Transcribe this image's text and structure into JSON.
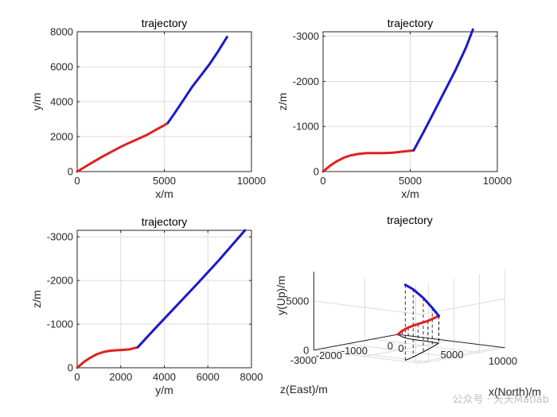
{
  "colors": {
    "phase1": "#e02020",
    "phase2": "#1a1acc",
    "axis": "#262626",
    "grid": "#dddddd"
  },
  "watermark": "公众号 · 天天Matlab",
  "chart_data": [
    {
      "type": "line",
      "title": "trajectory",
      "xlabel": "x/m",
      "ylabel": "y/m",
      "xlim": [
        0,
        10000
      ],
      "ylim": [
        0,
        8000
      ],
      "xticks": [
        0,
        5000,
        10000
      ],
      "yticks": [
        0,
        2000,
        4000,
        6000,
        8000
      ],
      "grid": true,
      "series": [
        {
          "color": "#e02020",
          "x": [
            0,
            500,
            1000,
            1500,
            2000,
            2500,
            3000,
            3500,
            4000,
            4500,
            5000,
            5200
          ],
          "y": [
            0,
            300,
            600,
            880,
            1150,
            1420,
            1650,
            1870,
            2100,
            2380,
            2650,
            2780
          ]
        },
        {
          "color": "#1a1acc",
          "x": [
            5200,
            5600,
            6100,
            6600,
            7100,
            7600,
            8100,
            8600
          ],
          "y": [
            2780,
            3350,
            4100,
            4850,
            5500,
            6150,
            6900,
            7700
          ]
        }
      ]
    },
    {
      "type": "line",
      "title": "trajectory",
      "xlabel": "x/m",
      "ylabel": "z/m",
      "xlim": [
        0,
        10000
      ],
      "ylim": [
        0,
        -3100
      ],
      "xticks": [
        0,
        5000,
        10000
      ],
      "yticks": [
        0,
        -1000,
        -2000,
        -3000
      ],
      "grid": true,
      "series": [
        {
          "color": "#e02020",
          "x": [
            0,
            400,
            800,
            1200,
            1600,
            2000,
            2500,
            3000,
            3500,
            4000,
            4500,
            5000,
            5200
          ],
          "y": [
            0,
            -130,
            -230,
            -310,
            -360,
            -390,
            -410,
            -410,
            -410,
            -420,
            -440,
            -460,
            -470
          ]
        },
        {
          "color": "#1a1acc",
          "x": [
            5200,
            5800,
            6400,
            7000,
            7600,
            8200,
            8600
          ],
          "y": [
            -470,
            -900,
            -1350,
            -1800,
            -2250,
            -2750,
            -3150
          ]
        }
      ]
    },
    {
      "type": "line",
      "title": "trajectory",
      "xlabel": "y/m",
      "ylabel": "z/m",
      "xlim": [
        0,
        8000
      ],
      "ylim": [
        0,
        -3150
      ],
      "xticks": [
        0,
        2000,
        4000,
        6000,
        8000
      ],
      "yticks": [
        0,
        -1000,
        -2000,
        -3000
      ],
      "grid": true,
      "series": [
        {
          "color": "#e02020",
          "x": [
            0,
            300,
            600,
            900,
            1200,
            1500,
            1800,
            2100,
            2400,
            2780
          ],
          "y": [
            0,
            -130,
            -230,
            -310,
            -360,
            -390,
            -400,
            -410,
            -420,
            -470
          ]
        },
        {
          "color": "#1a1acc",
          "x": [
            2780,
            3500,
            4500,
            5500,
            6500,
            7700
          ],
          "y": [
            -470,
            -860,
            -1390,
            -1920,
            -2460,
            -3150
          ]
        }
      ]
    },
    {
      "type": "line",
      "title": "trajectory",
      "xlabel": "x(North)/m",
      "ylabel": "y(Up)/m",
      "zlabel": "z(East)/m",
      "xticks": [
        0,
        5000,
        10000
      ],
      "yticks": [
        0,
        5000
      ],
      "zticks": [
        0,
        -1000,
        -2000,
        -3000
      ],
      "grid": true,
      "series": [
        {
          "color": "#e02020",
          "x": [
            0,
            1000,
            2000,
            3000,
            4000,
            5200
          ],
          "up": [
            0,
            600,
            1150,
            1650,
            2100,
            2780
          ],
          "east": [
            0,
            -230,
            -390,
            -410,
            -420,
            -470
          ]
        },
        {
          "color": "#1a1acc",
          "x": [
            5200,
            6000,
            7000,
            8000,
            8600
          ],
          "up": [
            2780,
            4000,
            5500,
            6900,
            7700
          ],
          "east": [
            -470,
            -1050,
            -1800,
            -2600,
            -3150
          ]
        }
      ]
    }
  ]
}
